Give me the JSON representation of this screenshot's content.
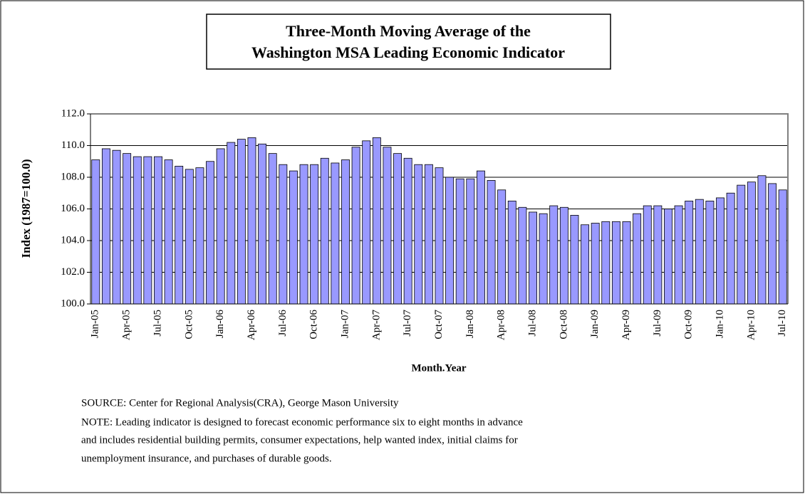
{
  "chart_data": {
    "type": "bar",
    "title": "Three-Month Moving Average of the",
    "subtitle": "Washington MSA Leading Economic Indicator",
    "y_label": "Index (1987=100.0)",
    "x_label": "Month.Year",
    "notes": [
      "SOURCE:  Center for Regional Analysis(CRA), George Mason University",
      "NOTE:  Leading indicator is designed to forecast economic performance six to eight months in advance",
      "and includes residential building permits, consumer expectations, help wanted index, initial claims for",
      "unemployment insurance, and purchases of durable goods."
    ],
    "categories": [
      "Jan-05",
      null,
      null,
      "Apr-05",
      null,
      null,
      "Jul-05",
      null,
      null,
      "Oct-05",
      null,
      null,
      "Jan-06",
      null,
      null,
      "Apr-06",
      null,
      null,
      "Jul-06",
      null,
      null,
      "Oct-06",
      null,
      null,
      "Jan-07",
      null,
      null,
      "Apr-07",
      null,
      null,
      "Jul-07",
      null,
      null,
      "Oct-07",
      null,
      null,
      "Jan-08",
      null,
      null,
      "Apr-08",
      null,
      null,
      "Jul-08",
      null,
      null,
      "Oct-08",
      null,
      null,
      "Jan-09",
      null,
      null,
      "Apr-09",
      null,
      null,
      "Jul-09",
      null,
      null,
      "Oct-09",
      null,
      null,
      "Jan-10",
      null,
      null,
      "Apr-10",
      null,
      null,
      "Jul-10"
    ],
    "values": [
      109.1,
      109.8,
      109.7,
      109.5,
      109.3,
      109.3,
      109.3,
      109.1,
      108.7,
      108.5,
      108.6,
      109.0,
      109.8,
      110.2,
      110.4,
      110.5,
      110.1,
      109.5,
      108.8,
      108.4,
      108.8,
      108.8,
      109.2,
      108.9,
      109.1,
      109.9,
      110.3,
      110.5,
      109.9,
      109.5,
      109.2,
      108.8,
      108.8,
      108.6,
      108.0,
      107.9,
      107.9,
      108.4,
      107.8,
      107.2,
      106.5,
      106.1,
      105.8,
      105.7,
      106.2,
      106.1,
      105.6,
      105.0,
      105.1,
      105.2,
      105.2,
      105.2,
      105.7,
      106.2,
      106.2,
      106.0,
      106.2,
      106.5,
      106.6,
      106.5,
      106.7,
      107.0,
      107.5,
      107.7,
      108.1,
      107.6,
      107.2
    ],
    "color": "#9999ff",
    "ylim": [
      100,
      112
    ],
    "yticks": [
      {
        "value": 100,
        "label": "100.0"
      },
      {
        "value": 102,
        "label": "102.0"
      },
      {
        "value": 104,
        "label": "104.0"
      },
      {
        "value": 106,
        "label": "106.0"
      },
      {
        "value": 108,
        "label": "108.0"
      },
      {
        "value": 110,
        "label": "110.0"
      },
      {
        "value": 112,
        "label": "112.0"
      }
    ],
    "grid": true
  }
}
